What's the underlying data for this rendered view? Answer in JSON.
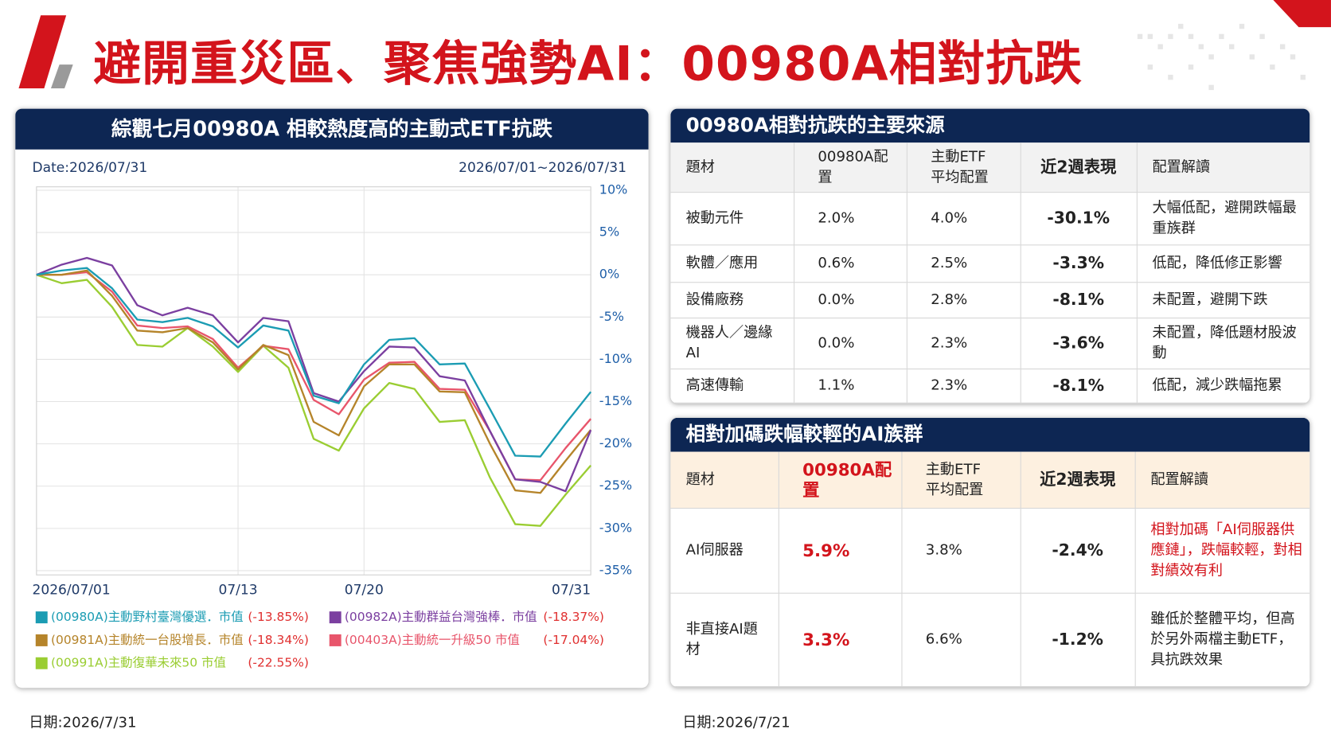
{
  "header": {
    "title": "避開重災區、聚焦強勢AI：00980A相對抗跌"
  },
  "left_panel": {
    "title": "綜觀七月00980A 相較熱度高的主動式ETF抗跌",
    "date_label": "Date:2026/07/31",
    "range_label": "2026/07/01~2026/07/31",
    "footnote": "日期:2026/7/31"
  },
  "chart_data": {
    "type": "line",
    "categories": [
      "2026/07/01",
      null,
      null,
      null,
      null,
      null,
      null,
      null,
      "07/13",
      null,
      null,
      null,
      null,
      "07/20",
      null,
      null,
      null,
      null,
      null,
      null,
      null,
      null,
      "07/31"
    ],
    "series": [
      {
        "name": "(00980A)主動野村臺灣優選．市值",
        "color": "#1b9cb3",
        "last_label": "(-13.85%)",
        "values": [
          0,
          0.5,
          0.8,
          -1.6,
          -5.3,
          -5.6,
          -5.1,
          -6.1,
          -8.6,
          -6.0,
          -6.6,
          -14.3,
          -15.2,
          -10.6,
          -7.7,
          -7.5,
          -10.6,
          -10.5,
          -15.9,
          -21.4,
          -21.5,
          -17.6,
          -13.85
        ]
      },
      {
        "name": "(00982A)主動群益台灣強棒．市值",
        "color": "#7b3fa0",
        "last_label": "(-18.37%)",
        "values": [
          0,
          1.2,
          2.0,
          1.1,
          -3.6,
          -4.8,
          -3.9,
          -4.8,
          -8.0,
          -5.1,
          -5.5,
          -14.0,
          -15.0,
          -11.4,
          -8.5,
          -8.6,
          -12.0,
          -12.5,
          -18.5,
          -24.2,
          -24.5,
          -25.6,
          -18.37
        ]
      },
      {
        "name": "(00981A)主動統一台股增長．市值",
        "color": "#b5842a",
        "last_label": "(-18.34%)",
        "values": [
          0,
          0,
          0.5,
          -2.5,
          -6.6,
          -6.8,
          -6.3,
          -8.0,
          -11.2,
          -8.3,
          -9.5,
          -17.4,
          -19.0,
          -13.2,
          -10.6,
          -10.6,
          -13.8,
          -13.9,
          -20.0,
          -25.5,
          -25.8,
          -22.0,
          -18.34
        ]
      },
      {
        "name": "(00403A)主動統一升級50 市值",
        "color": "#e8556b",
        "last_label": "(-17.04%)",
        "values": [
          0,
          0,
          0.3,
          -2.0,
          -6.0,
          -6.3,
          -6.1,
          -7.6,
          -11.0,
          -8.4,
          -8.8,
          -14.8,
          -16.5,
          -12.4,
          -10.4,
          -10.3,
          -13.5,
          -13.6,
          -18.5,
          -24.2,
          -24.3,
          -20.5,
          -17.04
        ]
      },
      {
        "name": "(00991A)主動復華未來50 市值",
        "color": "#9acd32",
        "last_label": "(-22.55%)",
        "values": [
          0,
          -1.0,
          -0.6,
          -3.8,
          -8.3,
          -8.5,
          -6.3,
          -8.5,
          -11.5,
          -8.4,
          -11.0,
          -19.4,
          -20.8,
          -15.8,
          -12.8,
          -13.5,
          -17.4,
          -17.2,
          -24.0,
          -29.5,
          -29.7,
          -26.0,
          -22.55
        ]
      }
    ],
    "ylim": [
      -35,
      10
    ],
    "yticks": [
      {
        "value": 10,
        "label": "10%"
      },
      {
        "value": 5,
        "label": "5%"
      },
      {
        "value": 0,
        "label": "0%"
      },
      {
        "value": -5,
        "label": "-5%"
      },
      {
        "value": -10,
        "label": "-10%"
      },
      {
        "value": -15,
        "label": "-15%"
      },
      {
        "value": -20,
        "label": "-20%"
      },
      {
        "value": -25,
        "label": "-25%"
      },
      {
        "value": -30,
        "label": "-30%"
      },
      {
        "value": -35,
        "label": "-35%"
      }
    ],
    "grid": true,
    "y_axis_side": "right",
    "legend": "bottom"
  },
  "tables": [
    {
      "title": "00980A相對抗跌的主要來源",
      "columns": [
        "題材",
        "00980A配置",
        "主動ETF\n平均配置",
        "近2週表現",
        "配置解讀"
      ],
      "rows": [
        [
          "被動元件",
          "2.0%",
          "4.0%",
          "-30.1%",
          "大幅低配，避開跌幅最重族群"
        ],
        [
          "軟體／應用",
          "0.6%",
          "2.5%",
          "-3.3%",
          "低配，降低修正影響"
        ],
        [
          "設備廠務",
          "0.0%",
          "2.8%",
          "-8.1%",
          "未配置，避開下跌"
        ],
        [
          "機器人／邊緣AI",
          "0.0%",
          "2.3%",
          "-3.6%",
          "未配置，降低題材股波動"
        ],
        [
          "高速傳輸",
          "1.1%",
          "2.3%",
          "-8.1%",
          "低配，減少跌幅拖累"
        ]
      ]
    },
    {
      "title": "相對加碼跌幅較輕的AI族群",
      "columns": [
        "題材",
        "00980A配置",
        "主動ETF\n平均配置",
        "近2週表現",
        "配置解讀"
      ],
      "rows": [
        [
          "AI伺服器",
          "5.9%",
          "3.8%",
          "-2.4%",
          "相對加碼「AI伺服器供應鏈」，跌幅較輕，對相對績效有利"
        ],
        [
          "非直接AI題材",
          "3.3%",
          "6.6%",
          "-1.2%",
          "雖低於整體平均，但高於另外兩檔主動ETF，具抗跌效果"
        ]
      ]
    }
  ],
  "right_footnote": "日期:2026/7/21"
}
